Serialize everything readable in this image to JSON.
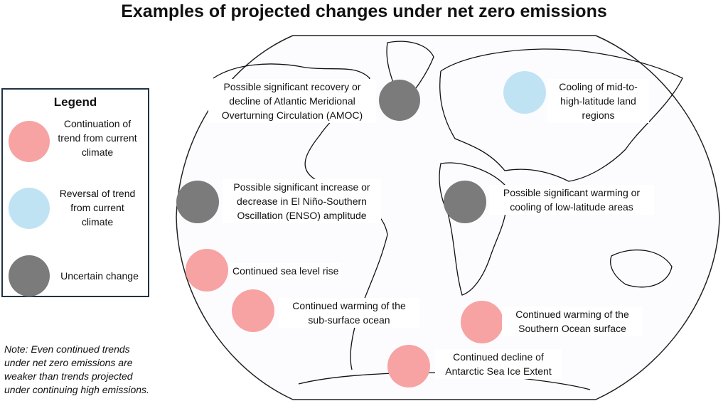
{
  "title": "Examples of projected changes under net zero emissions",
  "colors": {
    "continuation": "#f7a3a3",
    "reversal": "#c0e3f4",
    "uncertain": "#7b7b7b"
  },
  "legend": {
    "title": "Legend",
    "items": [
      {
        "label": "Continuation of trend from current climate"
      },
      {
        "label": "Reversal of trend from current climate"
      },
      {
        "label": "Uncertain change"
      }
    ]
  },
  "annotations": {
    "amoc": "Possible significant recovery or decline of Atlantic Meridional Overturning Circulation (AMOC)",
    "cooling": "Cooling of mid-to-high-latitude land regions",
    "enso": "Possible significant increase or decrease in El Niño-Southern Oscillation (ENSO) amplitude",
    "low_latitude": "Possible significant warming or cooling of low-latitude areas",
    "sea_level": "Continued sea level rise",
    "subsurface": "Continued warming of the sub-surface ocean",
    "southern_ocean": "Continued warming of the Southern Ocean surface",
    "antarctic": "Continued decline of Antarctic Sea Ice Extent"
  },
  "note": "Note: Even continued trends under net zero emissions are weaker than trends projected under continuing high emissions."
}
